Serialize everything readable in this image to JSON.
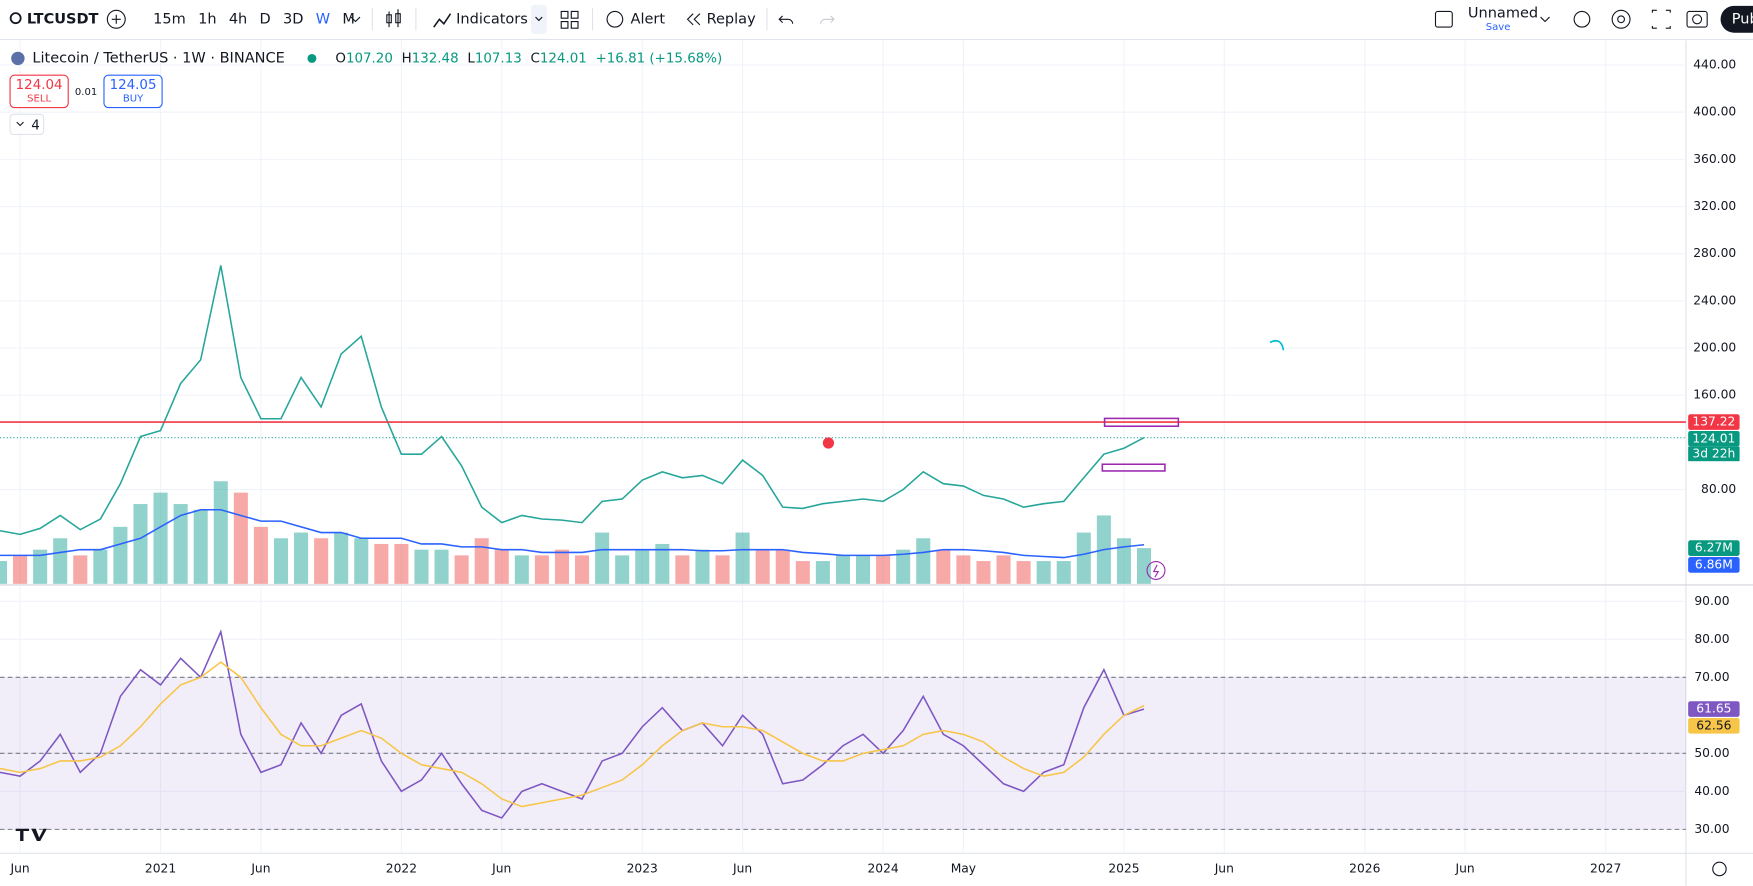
{
  "toolbar": {
    "symbol": "LTCUSDT",
    "intervals": [
      "15m",
      "1h",
      "4h",
      "D",
      "3D",
      "W",
      "M"
    ],
    "active_interval": 5,
    "indicators": "Indicators",
    "alert": "Alert",
    "replay": "Replay",
    "layout_name": "Unnamed",
    "save": "Save",
    "publish": "Pub"
  },
  "legend": {
    "open_label": "O",
    "open": "107.20",
    "high_label": "H",
    "high": "132.48",
    "low_label": "L",
    "low": "107.13",
    "close_label": "C",
    "close": "124.01",
    "change": "+16.81 (+15.68%)",
    "sell_price": "124.04",
    "sell": "SELL",
    "spread": "0.01",
    "buy_price": "124.05",
    "buy": "BUY",
    "indicator_count": "4",
    "countdown": "3d 22h"
  },
  "chart_data": [
    {
      "type": "line",
      "title": "Litecoin / TetherUS · 1W · BINANCE",
      "x": [
        "2020-05",
        "2020-06",
        "2020-07",
        "2020-08",
        "2020-09",
        "2020-10",
        "2020-11",
        "2020-12",
        "2021-01",
        "2021-02",
        "2021-03",
        "2021-04",
        "2021-05",
        "2021-06",
        "2021-07",
        "2021-08",
        "2021-09",
        "2021-10",
        "2021-11",
        "2021-12",
        "2022-01",
        "2022-02",
        "2022-03",
        "2022-04",
        "2022-05",
        "2022-06",
        "2022-07",
        "2022-08",
        "2022-09",
        "2022-10",
        "2022-11",
        "2022-12",
        "2023-01",
        "2023-02",
        "2023-03",
        "2023-04",
        "2023-05",
        "2023-06",
        "2023-07",
        "2023-08",
        "2023-09",
        "2023-10",
        "2023-11",
        "2023-12",
        "2024-01",
        "2024-02",
        "2024-03",
        "2024-04",
        "2024-05",
        "2024-06",
        "2024-07",
        "2024-08",
        "2024-09",
        "2024-10",
        "2024-11",
        "2024-12",
        "2025-01",
        "2025-02"
      ],
      "xlim": [
        "2020-05",
        "2027-05"
      ],
      "ylim": [
        0,
        457
      ],
      "yticks": [
        {
          "value": 80,
          "label": "80.00"
        },
        {
          "value": 160,
          "label": "160.00"
        },
        {
          "value": 200,
          "label": "200.00"
        },
        {
          "value": 240,
          "label": "240.00"
        },
        {
          "value": 280,
          "label": "280.00"
        },
        {
          "value": 320,
          "label": "320.00"
        },
        {
          "value": 360,
          "label": "360.00"
        },
        {
          "value": 400,
          "label": "400.00"
        },
        {
          "value": 440,
          "label": "440.00"
        }
      ],
      "y2lim": [
        0,
        40
      ],
      "up_color": "#26a69a",
      "down_color": "#ef5350",
      "hline": {
        "value": 137.22,
        "color": "#f23645"
      },
      "series": [
        {
          "color": "#26a69a",
          "values": [
            45,
            42,
            47,
            58,
            46,
            55,
            85,
            125,
            130,
            170,
            190,
            270,
            175,
            140,
            140,
            175,
            150,
            195,
            210,
            150,
            110,
            110,
            125,
            100,
            65,
            52,
            58,
            55,
            54,
            52,
            70,
            72,
            88,
            95,
            90,
            92,
            85,
            105,
            92,
            65,
            64,
            68,
            70,
            72,
            70,
            80,
            95,
            85,
            83,
            75,
            72,
            65,
            68,
            70,
            90,
            110,
            115,
            124.01
          ]
        },
        {
          "type": "bar",
          "axis": "y2",
          "color": "#089981",
          "values": [
            4,
            5,
            6,
            8,
            5,
            6,
            10,
            14,
            16,
            14,
            13,
            18,
            16,
            10,
            8,
            9,
            8,
            9,
            8,
            7,
            7,
            6,
            6,
            5,
            8,
            6,
            5,
            5,
            6,
            5,
            9,
            5,
            6,
            7,
            5,
            6,
            5,
            9,
            6,
            6,
            4,
            4,
            5,
            5,
            5,
            6,
            8,
            6,
            5,
            4,
            5,
            4,
            4,
            4,
            9,
            12,
            8,
            6.27
          ],
          "value_labels": [
            null,
            null,
            null,
            null,
            null,
            null,
            null,
            null,
            null,
            null,
            null,
            null,
            null,
            null,
            null,
            null,
            null,
            null,
            null,
            null,
            null,
            null,
            null,
            null,
            null,
            null,
            null,
            null,
            null,
            null,
            null,
            null,
            null,
            null,
            null,
            null,
            null,
            null,
            null,
            null,
            null,
            null,
            null,
            null,
            null,
            null,
            null,
            null,
            null,
            null,
            null,
            null,
            null,
            null,
            null,
            null,
            null,
            "6.27M"
          ]
        },
        {
          "axis": "y2",
          "color": "#2962ff",
          "values": [
            5,
            5,
            5,
            5.5,
            6,
            6,
            7,
            8,
            10,
            12,
            13,
            13,
            12,
            11,
            11,
            10,
            9,
            9,
            8,
            8,
            8,
            7,
            7,
            6.5,
            6.5,
            6,
            6,
            5.5,
            5.5,
            5.5,
            6,
            6,
            6,
            6,
            6,
            5.8,
            5.8,
            6,
            6,
            6,
            5.5,
            5.3,
            5,
            5,
            5,
            5.2,
            5.5,
            6,
            6,
            5.8,
            5.5,
            5,
            4.8,
            4.6,
            5.2,
            6,
            6.5,
            6.86
          ],
          "value_labels": [
            null,
            null,
            null,
            null,
            null,
            null,
            null,
            null,
            null,
            null,
            null,
            null,
            null,
            null,
            null,
            null,
            null,
            null,
            null,
            null,
            null,
            null,
            null,
            null,
            null,
            null,
            null,
            null,
            null,
            null,
            null,
            null,
            null,
            null,
            null,
            null,
            null,
            null,
            null,
            null,
            null,
            null,
            null,
            null,
            null,
            null,
            null,
            null,
            null,
            null,
            null,
            null,
            null,
            null,
            null,
            null,
            null,
            "6.86M"
          ]
        }
      ]
    },
    {
      "type": "line",
      "x": [
        "2020-05",
        "2020-06",
        "2020-07",
        "2020-08",
        "2020-09",
        "2020-10",
        "2020-11",
        "2020-12",
        "2021-01",
        "2021-02",
        "2021-03",
        "2021-04",
        "2021-05",
        "2021-06",
        "2021-07",
        "2021-08",
        "2021-09",
        "2021-10",
        "2021-11",
        "2021-12",
        "2022-01",
        "2022-02",
        "2022-03",
        "2022-04",
        "2022-05",
        "2022-06",
        "2022-07",
        "2022-08",
        "2022-09",
        "2022-10",
        "2022-11",
        "2022-12",
        "2023-01",
        "2023-02",
        "2023-03",
        "2023-04",
        "2023-05",
        "2023-06",
        "2023-07",
        "2023-08",
        "2023-09",
        "2023-10",
        "2023-11",
        "2023-12",
        "2024-01",
        "2024-02",
        "2024-03",
        "2024-04",
        "2024-05",
        "2024-06",
        "2024-07",
        "2024-08",
        "2024-09",
        "2024-10",
        "2024-11",
        "2024-12",
        "2025-01",
        "2025-02"
      ],
      "xlim": [
        "2020-05",
        "2027-05"
      ],
      "xticks": [
        {
          "value": "2020-06",
          "label": "Jun"
        },
        {
          "value": "2021-01",
          "label": "2021"
        },
        {
          "value": "2021-06",
          "label": "Jun"
        },
        {
          "value": "2022-01",
          "label": "2022"
        },
        {
          "value": "2022-06",
          "label": "Jun"
        },
        {
          "value": "2023-01",
          "label": "2023"
        },
        {
          "value": "2023-06",
          "label": "Jun"
        },
        {
          "value": "2024-01",
          "label": "2024"
        },
        {
          "value": "2024-05",
          "label": "May"
        },
        {
          "value": "2025-01",
          "label": "2025"
        },
        {
          "value": "2025-06",
          "label": "Jun"
        },
        {
          "value": "2026-01",
          "label": "2026"
        },
        {
          "value": "2026-06",
          "label": "Jun"
        },
        {
          "value": "2027-01",
          "label": "2027"
        }
      ],
      "ylim": [
        24,
        94
      ],
      "yticks": [
        {
          "value": 30,
          "label": "30.00"
        },
        {
          "value": 40,
          "label": "40.00"
        },
        {
          "value": 50,
          "label": "50.00"
        },
        {
          "value": 70,
          "label": "70.00"
        },
        {
          "value": 80,
          "label": "80.00"
        },
        {
          "value": 90,
          "label": "90.00"
        }
      ],
      "bands": [
        70,
        50,
        30
      ],
      "band_color": "#7e57c2",
      "series": [
        {
          "color": "#7e57c2",
          "values": [
            45,
            44,
            48,
            55,
            45,
            50,
            65,
            72,
            68,
            75,
            70,
            82,
            55,
            45,
            47,
            58,
            50,
            60,
            63,
            48,
            40,
            43,
            50,
            42,
            35,
            33,
            40,
            42,
            40,
            38,
            48,
            50,
            57,
            62,
            56,
            58,
            52,
            60,
            55,
            42,
            43,
            47,
            52,
            55,
            50,
            56,
            65,
            55,
            52,
            47,
            42,
            40,
            45,
            47,
            62,
            72,
            60,
            61.65
          ]
        },
        {
          "color": "#f7c548",
          "values": [
            46,
            45,
            46,
            48,
            48,
            49,
            52,
            57,
            63,
            68,
            70,
            74,
            70,
            62,
            55,
            52,
            52,
            54,
            56,
            54,
            50,
            47,
            46,
            45,
            42,
            38,
            36,
            37,
            38,
            39,
            41,
            43,
            47,
            52,
            56,
            58,
            57,
            57,
            56,
            53,
            50,
            48,
            48,
            50,
            51,
            52,
            55,
            56,
            55,
            53,
            49,
            46,
            44,
            45,
            49,
            55,
            60,
            62.56
          ]
        }
      ]
    }
  ]
}
